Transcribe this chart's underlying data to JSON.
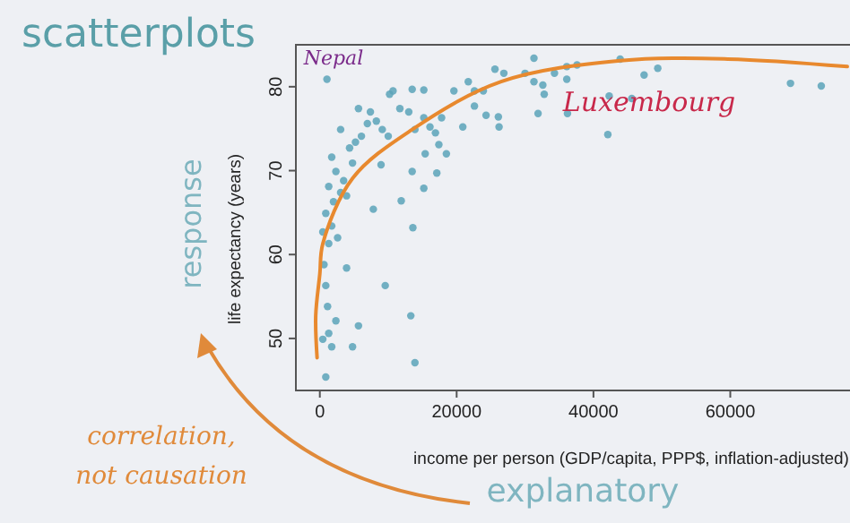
{
  "chart_data": {
    "type": "scatter",
    "title": "scatterplots",
    "xlabel": "income per person (GDP/capita, PPP$, inflation-adjusted)",
    "ylabel": "life expectancy (years)",
    "annotations": [
      "Nepal",
      "Luxembourg",
      "response",
      "explanatory",
      "correlation, not causation"
    ],
    "xlim": [
      -3500,
      77500
    ],
    "ylim": [
      43.8,
      85
    ],
    "xticks": [
      0,
      20000,
      40000,
      60000
    ],
    "yticks": [
      50,
      60,
      70,
      80
    ],
    "grid": false,
    "series": [
      {
        "color": "#5ba3b8",
        "marker": "circle",
        "x": [
          1043,
          869,
          1738,
          4780,
          5650,
          2346,
          13900,
          13300,
          9560,
          3910,
          7820,
          11900,
          13600,
          15200,
          17100,
          13500,
          8950,
          435,
          1300,
          1130,
          870,
          610,
          1300,
          435,
          1740,
          2600,
          870,
          2000,
          1300,
          3040,
          3910,
          2350,
          1740,
          3480,
          4780,
          4350,
          3040,
          5210,
          6080,
          6950,
          8260,
          9130,
          10000,
          5650,
          7390,
          10200,
          10700,
          13500,
          15200,
          11700,
          13000,
          13900,
          15200,
          16100,
          16900,
          17800,
          17400,
          18500,
          15400,
          19600,
          20900,
          21700,
          22600,
          22600,
          23900,
          24300,
          26100,
          26200,
          25600,
          26900,
          30000,
          31300,
          31300,
          32600,
          32800,
          31900,
          34300,
          36100,
          36100,
          37600,
          36200,
          42300,
          42100,
          43900,
          45600,
          47400,
          49400,
          68800,
          73300
        ],
        "values": [
          80.9,
          45.4,
          49.0,
          49.0,
          51.5,
          52.1,
          47.1,
          52.7,
          56.3,
          58.4,
          65.4,
          66.4,
          63.2,
          67.9,
          69.7,
          69.9,
          70.7,
          49.9,
          50.6,
          53.8,
          56.3,
          58.8,
          61.3,
          62.7,
          63.4,
          62.0,
          64.9,
          66.3,
          68.1,
          67.4,
          67.0,
          69.9,
          71.6,
          68.8,
          70.9,
          72.7,
          74.9,
          73.4,
          74.1,
          75.6,
          75.9,
          74.9,
          74.1,
          77.4,
          77.0,
          79.1,
          79.5,
          79.7,
          79.6,
          77.4,
          77.0,
          74.9,
          76.3,
          75.2,
          74.5,
          76.3,
          73.1,
          72.0,
          72.0,
          79.5,
          75.2,
          80.6,
          77.7,
          79.5,
          79.5,
          76.6,
          76.4,
          75.2,
          82.1,
          81.6,
          81.6,
          83.4,
          80.6,
          80.2,
          79.1,
          76.8,
          81.6,
          82.4,
          80.9,
          82.6,
          76.8,
          78.9,
          74.3,
          83.3,
          78.6,
          81.4,
          82.2,
          80.4,
          80.1
        ]
      },
      {
        "type": "line",
        "color": "#e8892e",
        "line_style": "solid",
        "marker": "none",
        "x": [
          -400,
          -600,
          0,
          440,
          4800,
          13500,
          26500,
          43900,
          59600,
          77100
        ],
        "values": [
          47.7,
          52.7,
          57.7,
          61.3,
          69.1,
          74.9,
          80.6,
          83.1,
          83.3,
          82.4
        ]
      }
    ]
  }
}
